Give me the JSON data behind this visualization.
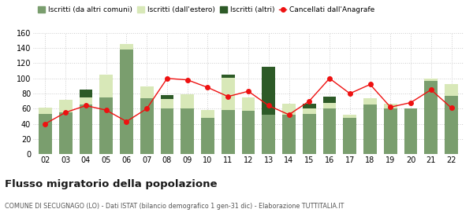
{
  "years": [
    "02",
    "03",
    "04",
    "05",
    "06",
    "07",
    "08",
    "09",
    "10",
    "11",
    "12",
    "13",
    "14",
    "15",
    "16",
    "17",
    "18",
    "19",
    "20",
    "21",
    "22"
  ],
  "iscritti_altri_comuni": [
    53,
    55,
    65,
    75,
    138,
    74,
    60,
    60,
    48,
    58,
    57,
    52,
    52,
    53,
    60,
    48,
    65,
    60,
    60,
    97,
    77
  ],
  "iscritti_estero": [
    8,
    17,
    10,
    30,
    7,
    15,
    13,
    19,
    10,
    43,
    18,
    0,
    14,
    7,
    8,
    4,
    9,
    7,
    0,
    3,
    15
  ],
  "iscritti_altri": [
    0,
    0,
    10,
    0,
    0,
    0,
    5,
    0,
    0,
    4,
    0,
    63,
    0,
    6,
    8,
    0,
    0,
    0,
    0,
    0,
    0
  ],
  "cancellati": [
    40,
    55,
    64,
    58,
    43,
    60,
    100,
    98,
    88,
    76,
    83,
    64,
    52,
    70,
    100,
    80,
    92,
    62,
    68,
    85,
    61
  ],
  "colors_bar1": "#7a9e6e",
  "colors_bar2": "#d8e8b8",
  "colors_bar3": "#2d5a27",
  "colors_line": "#ee1111",
  "title": "Flusso migratorio della popolazione",
  "subtitle": "COMUNE DI SECUGNAGO (LO) - Dati ISTAT (bilancio demografico 1 gen-31 dic) - Elaborazione TUTTITALIA.IT",
  "legend_labels": [
    "Iscritti (da altri comuni)",
    "Iscritti (dall'estero)",
    "Iscritti (altri)",
    "Cancellati dall'Anagrafe"
  ],
  "ylim": [
    0,
    160
  ],
  "yticks": [
    0,
    20,
    40,
    60,
    80,
    100,
    120,
    140,
    160
  ],
  "bg_color": "#ffffff",
  "grid_color": "#cccccc"
}
